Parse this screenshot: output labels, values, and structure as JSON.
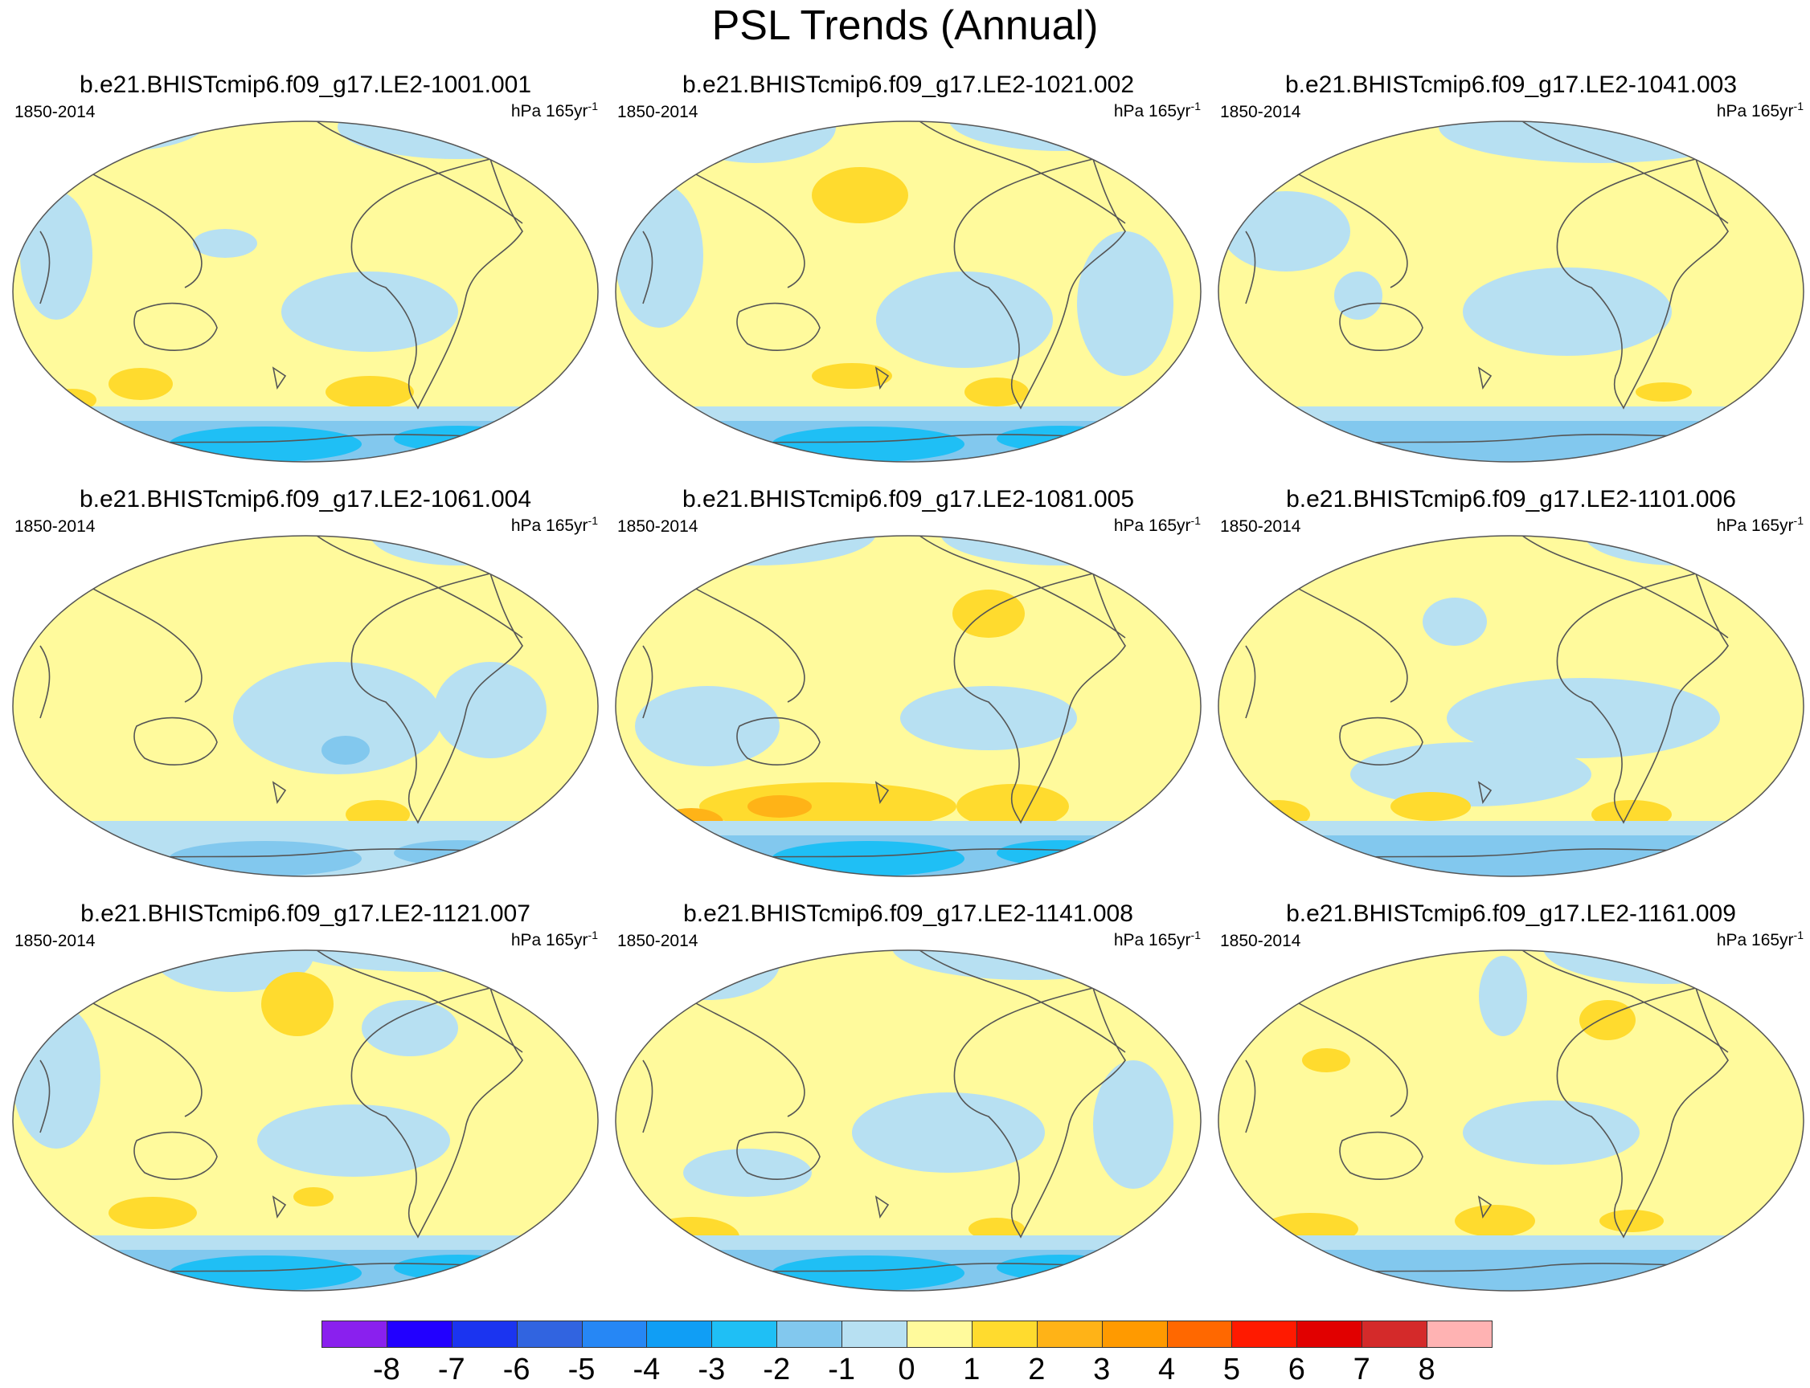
{
  "title": "PSL Trends (Annual)",
  "panels": [
    {
      "title": "b.e21.BHISTcmip6.f09_g17.LE2-1001.001",
      "years": "1850-2014",
      "units_base": "hPa 165yr",
      "units_exp": "-1"
    },
    {
      "title": "b.e21.BHISTcmip6.f09_g17.LE2-1021.002",
      "years": "1850-2014",
      "units_base": "hPa 165yr",
      "units_exp": "-1"
    },
    {
      "title": "b.e21.BHISTcmip6.f09_g17.LE2-1041.003",
      "years": "1850-2014",
      "units_base": "hPa 165yr",
      "units_exp": "-1"
    },
    {
      "title": "b.e21.BHISTcmip6.f09_g17.LE2-1061.004",
      "years": "1850-2014",
      "units_base": "hPa 165yr",
      "units_exp": "-1"
    },
    {
      "title": "b.e21.BHISTcmip6.f09_g17.LE2-1081.005",
      "years": "1850-2014",
      "units_base": "hPa 165yr",
      "units_exp": "-1"
    },
    {
      "title": "b.e21.BHISTcmip6.f09_g17.LE2-1101.006",
      "years": "1850-2014",
      "units_base": "hPa 165yr",
      "units_exp": "-1"
    },
    {
      "title": "b.e21.BHISTcmip6.f09_g17.LE2-1121.007",
      "years": "1850-2014",
      "units_base": "hPa 165yr",
      "units_exp": "-1"
    },
    {
      "title": "b.e21.BHISTcmip6.f09_g17.LE2-1141.008",
      "years": "1850-2014",
      "units_base": "hPa 165yr",
      "units_exp": "-1"
    },
    {
      "title": "b.e21.BHISTcmip6.f09_g17.LE2-1161.009",
      "years": "1850-2014",
      "units_base": "hPa 165yr",
      "units_exp": "-1"
    }
  ],
  "colors": {
    "base_positive": "#fffa9c",
    "weak_negative": "#b7e0f2",
    "moderate_negative": "#82c8ee",
    "strong_negative": "#1fbff5",
    "moderate_positive": "#ffdb2e",
    "strong_positive": "#ffb317",
    "coast": "#555555"
  },
  "colorbar": {
    "colors": [
      "#8a20ee",
      "#2200ff",
      "#1b34f0",
      "#3164e0",
      "#2687f5",
      "#109ef5",
      "#1fbff5",
      "#82c8ee",
      "#b7e0f2",
      "#fffa9c",
      "#ffdb2e",
      "#ffb317",
      "#ff9a00",
      "#ff6800",
      "#ff1a00",
      "#e10000",
      "#d42a2a",
      "#ffb3b3"
    ],
    "labels": [
      "-8",
      "-7",
      "-6",
      "-5",
      "-4",
      "-3",
      "-2",
      "-1",
      "0",
      "1",
      "2",
      "3",
      "4",
      "5",
      "6",
      "7",
      "8"
    ]
  }
}
